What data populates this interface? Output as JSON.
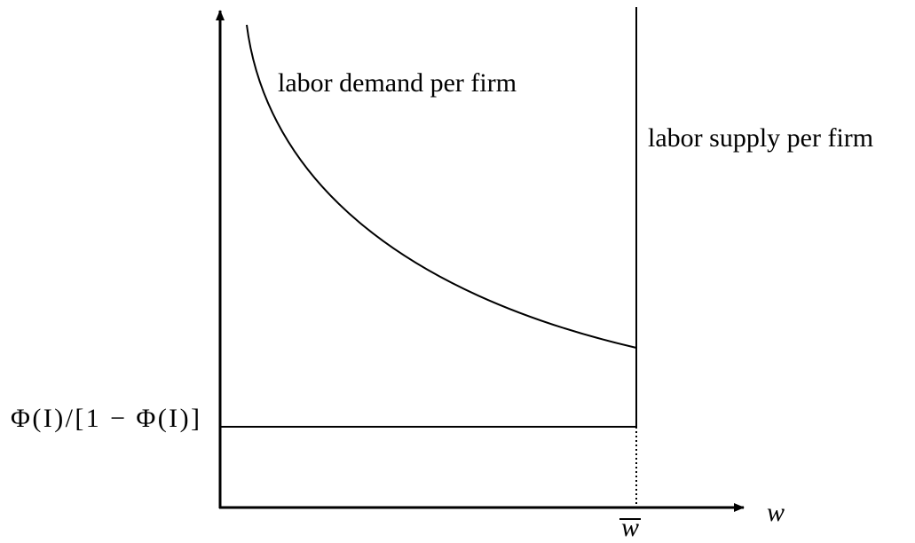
{
  "labels": {
    "demand": "labor demand per firm",
    "supply": "labor supply per firm",
    "threshold": "Φ(I)/[1 − Φ(I)]",
    "x_axis": "w",
    "x_marker": "w"
  }
}
